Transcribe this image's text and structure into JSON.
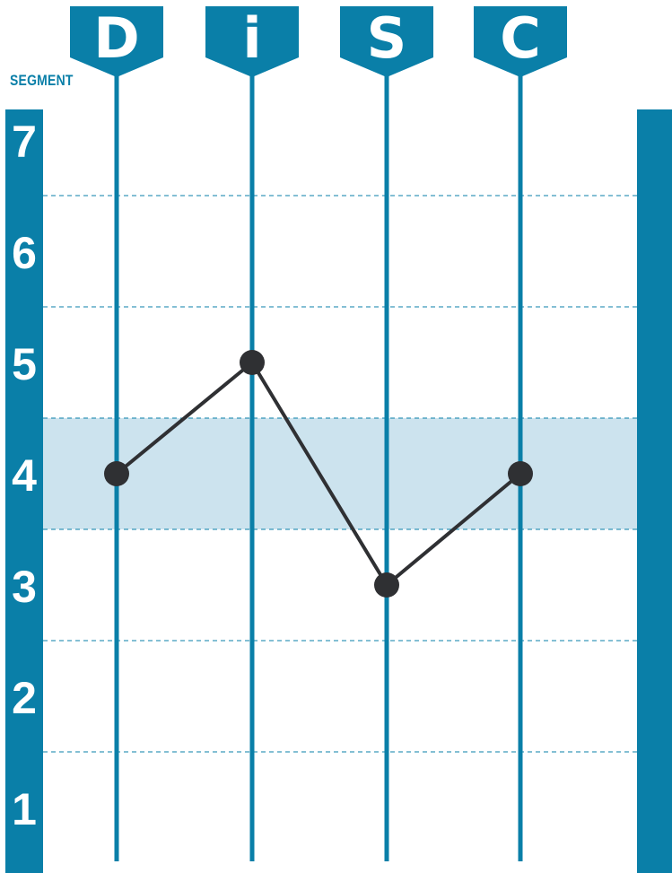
{
  "colors": {
    "accent": "#0a7fa8",
    "band": "#cce3ee",
    "grid": "#0a7fa8",
    "line": "#2f3033",
    "point": "#2f3033",
    "text_light": "#ffffff"
  },
  "segment_label": "SEGMENT",
  "chart_data": {
    "type": "line",
    "title": "",
    "categories": [
      "D",
      "i",
      "S",
      "C"
    ],
    "values": [
      4,
      5,
      3,
      4
    ],
    "y_ticks": [
      "1",
      "2",
      "3",
      "4",
      "5",
      "6",
      "7"
    ],
    "ylabel": "SEGMENT",
    "ylim": [
      1,
      7
    ],
    "grid": true,
    "highlight_band": [
      3.5,
      4.5
    ],
    "legend": "none"
  }
}
